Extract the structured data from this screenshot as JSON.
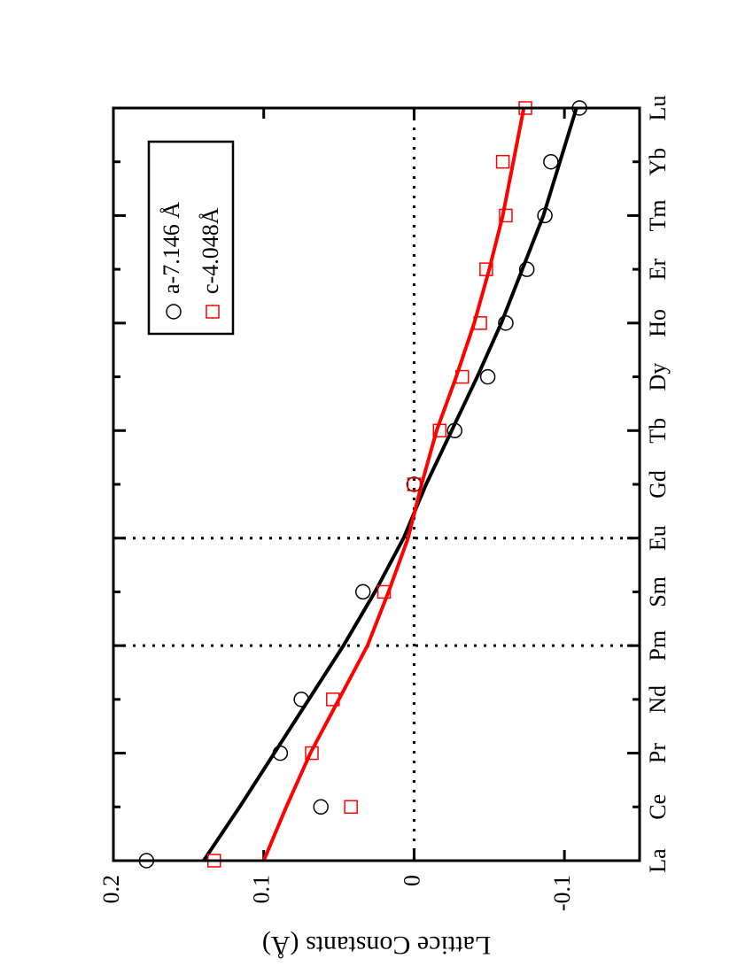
{
  "chart_data": {
    "type": "scatter",
    "orientation": "rotated",
    "y_label": "Lattice Constants  (Å)",
    "categories": [
      "La",
      "Ce",
      "Pr",
      "Nd",
      "Pm",
      "Sm",
      "Eu",
      "Gd",
      "Tb",
      "Dy",
      "Ho",
      "Er",
      "Tm",
      "Yb",
      "Lu"
    ],
    "series": [
      {
        "name": "a-7.146 Å",
        "color": "#000000",
        "marker": "circle",
        "values": [
          0.178,
          0.062,
          0.089,
          0.075,
          null,
          0.034,
          null,
          0,
          -0.027,
          -0.049,
          -0.061,
          -0.075,
          -0.087,
          -0.091,
          -0.11
        ]
      },
      {
        "name": "c-4.048Å",
        "color": "#ff0000",
        "marker": "square",
        "values": [
          0.133,
          0.042,
          0.068,
          0.054,
          null,
          0.02,
          null,
          0,
          -0.017,
          -0.032,
          -0.044,
          -0.048,
          -0.061,
          -0.059,
          -0.074
        ]
      }
    ],
    "fits": [
      {
        "color": "#000000",
        "values": [
          0.14,
          0.116,
          0.093,
          0.07,
          0.047,
          0.026,
          0.007,
          -0.008,
          -0.025,
          -0.042,
          -0.058,
          -0.072,
          -0.086,
          -0.097,
          -0.108
        ]
      },
      {
        "color": "#ff0000",
        "values": [
          0.1,
          0.085,
          0.069,
          0.05,
          0.031,
          0.017,
          0.004,
          -0.005,
          -0.015,
          -0.028,
          -0.04,
          -0.05,
          -0.059,
          -0.066,
          -0.073
        ]
      }
    ],
    "ylim": [
      -0.15,
      0.2
    ],
    "yticks": [
      -0.1,
      0,
      0.1,
      0.2
    ],
    "zero_line": 0,
    "dotted_category_lines": [
      4,
      6
    ],
    "legend": "top-left"
  }
}
